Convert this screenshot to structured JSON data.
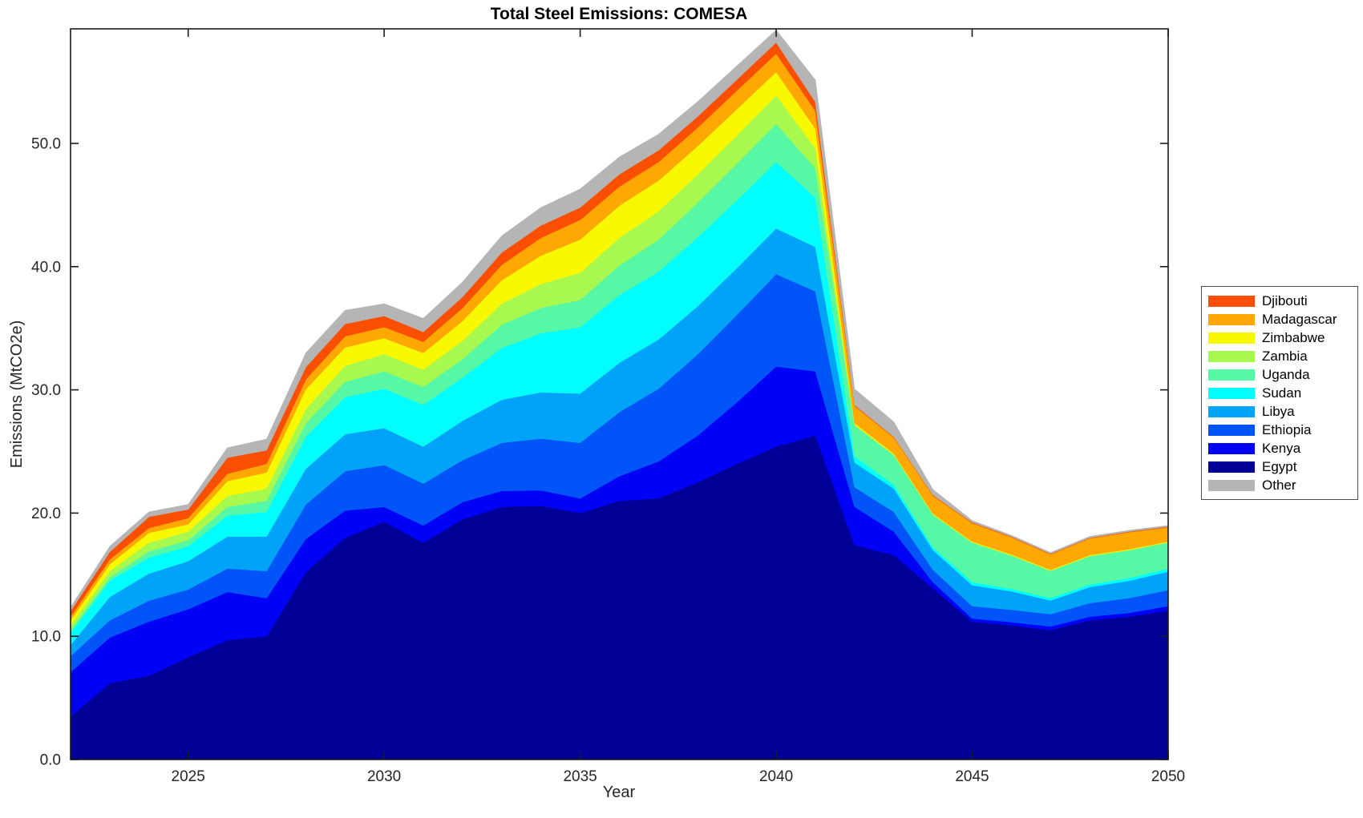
{
  "chart_data": {
    "type": "area",
    "stacked": true,
    "title": "Total Steel Emissions: COMESA",
    "xlabel": "Year",
    "ylabel": "Emissions (MtCO2e)",
    "x_range": [
      2022,
      2050
    ],
    "ylim": [
      0,
      59.3
    ],
    "x_ticks": [
      2025,
      2030,
      2035,
      2040,
      2045,
      2050
    ],
    "y_ticks": [
      0,
      10,
      20,
      30,
      40,
      50
    ],
    "y_tick_labels": [
      "0.0",
      "10.0",
      "20.0",
      "30.0",
      "40.0",
      "50.0"
    ],
    "grid": false,
    "legend_position": "right-outside",
    "axis_color": "#1a1a1a",
    "years": [
      2022,
      2023,
      2024,
      2025,
      2026,
      2027,
      2028,
      2029,
      2030,
      2031,
      2032,
      2033,
      2034,
      2035,
      2036,
      2037,
      2038,
      2039,
      2040,
      2041,
      2042,
      2043,
      2044,
      2045,
      2046,
      2047,
      2048,
      2049,
      2050
    ],
    "series": [
      {
        "name": "Egypt",
        "color": "#000096",
        "values": [
          3.5,
          6.2,
          6.8,
          8.3,
          9.7,
          10.0,
          15.2,
          18.0,
          19.3,
          17.6,
          19.5,
          20.5,
          20.6,
          20.0,
          21.0,
          21.2,
          22.5,
          24.0,
          25.4,
          26.3,
          17.4,
          16.6,
          13.9,
          11.2,
          10.9,
          10.5,
          11.3,
          11.6,
          12.1
        ]
      },
      {
        "name": "Kenya",
        "color": "#0002f5",
        "values": [
          3.6,
          3.7,
          4.4,
          3.9,
          3.9,
          3.1,
          2.7,
          2.2,
          1.2,
          1.4,
          1.4,
          1.3,
          1.25,
          1.2,
          2.0,
          3.0,
          3.8,
          5.0,
          6.5,
          5.2,
          3.1,
          1.9,
          0.5,
          0.25,
          0.25,
          0.3,
          0.3,
          0.3,
          0.35
        ]
      },
      {
        "name": "Ethiopia",
        "color": "#0054f8",
        "values": [
          1.3,
          1.4,
          1.7,
          1.6,
          1.9,
          2.2,
          2.8,
          3.2,
          3.4,
          3.4,
          3.4,
          3.9,
          4.2,
          4.5,
          5.2,
          5.9,
          6.6,
          7.1,
          7.5,
          6.5,
          1.6,
          1.6,
          1.0,
          1.0,
          1.0,
          1.0,
          1.1,
          1.2,
          1.3
        ]
      },
      {
        "name": "Libya",
        "color": "#00a3f8",
        "values": [
          0.9,
          1.9,
          2.2,
          2.3,
          2.6,
          2.8,
          2.9,
          3.0,
          3.0,
          3.0,
          3.2,
          3.5,
          3.75,
          4.0,
          4.0,
          4.0,
          3.9,
          3.8,
          3.7,
          3.6,
          2.0,
          1.9,
          1.6,
          1.7,
          1.5,
          1.1,
          1.3,
          1.4,
          1.5
        ]
      },
      {
        "name": "Sudan",
        "color": "#00fdff",
        "values": [
          1.0,
          1.3,
          1.3,
          1.2,
          1.7,
          2.0,
          2.6,
          3.0,
          3.2,
          3.4,
          3.5,
          4.2,
          4.8,
          5.4,
          5.5,
          5.5,
          5.6,
          5.5,
          5.4,
          4.0,
          0.5,
          0.3,
          0.25,
          0.25,
          0.2,
          0.2,
          0.2,
          0.22,
          0.25
        ]
      },
      {
        "name": "Uganda",
        "color": "#56f8a5",
        "values": [
          0.2,
          0.3,
          0.5,
          0.5,
          0.7,
          0.9,
          1.1,
          1.25,
          1.4,
          1.45,
          1.5,
          1.9,
          2.05,
          2.2,
          2.4,
          2.6,
          2.8,
          2.95,
          3.1,
          2.4,
          2.5,
          2.4,
          2.6,
          3.2,
          2.7,
          2.2,
          2.3,
          2.25,
          2.1
        ]
      },
      {
        "name": "Zambia",
        "color": "#a7f84f",
        "values": [
          0.4,
          0.5,
          0.7,
          0.7,
          0.9,
          1.0,
          1.15,
          1.3,
          1.4,
          1.4,
          1.5,
          1.7,
          1.95,
          2.2,
          2.25,
          2.3,
          2.3,
          2.3,
          2.3,
          1.6,
          0.1,
          0.07,
          0.06,
          0.05,
          0.05,
          0.05,
          0.05,
          0.05,
          0.05
        ]
      },
      {
        "name": "Zimbabwe",
        "color": "#f8f800",
        "values": [
          0.4,
          0.55,
          0.8,
          0.6,
          1.2,
          1.3,
          1.6,
          1.5,
          1.3,
          1.35,
          1.6,
          1.9,
          2.3,
          2.7,
          2.6,
          2.5,
          2.3,
          2.15,
          1.9,
          1.6,
          0.1,
          0.07,
          0.06,
          0.05,
          0.05,
          0.05,
          0.05,
          0.05,
          0.05
        ]
      },
      {
        "name": "Madagascar",
        "color": "#ffa702",
        "values": [
          0.3,
          0.4,
          0.4,
          0.5,
          0.6,
          0.7,
          0.8,
          0.9,
          0.9,
          0.9,
          1.05,
          1.25,
          1.45,
          1.6,
          1.55,
          1.5,
          1.5,
          1.5,
          1.5,
          1.45,
          1.4,
          1.3,
          1.45,
          1.5,
          1.4,
          1.25,
          1.35,
          1.38,
          1.15
        ]
      },
      {
        "name": "Djibouti",
        "color": "#fa4f00",
        "values": [
          0.45,
          0.6,
          0.9,
          0.7,
          1.3,
          1.1,
          1.0,
          1.0,
          0.9,
          0.8,
          0.9,
          1.0,
          1.0,
          1.0,
          1.0,
          0.95,
          0.9,
          0.9,
          0.9,
          0.7,
          0.07,
          0.06,
          0.05,
          0.05,
          0.05,
          0.05,
          0.05,
          0.05,
          0.05
        ]
      },
      {
        "name": "Other",
        "color": "#b5b5b5",
        "values": [
          0.3,
          0.45,
          0.4,
          0.4,
          0.8,
          0.9,
          1.15,
          1.1,
          1.0,
          1.1,
          1.2,
          1.35,
          1.45,
          1.5,
          1.4,
          1.3,
          1.2,
          1.1,
          1.0,
          1.8,
          1.3,
          1.2,
          0.45,
          0.15,
          0.1,
          0.1,
          0.1,
          0.1,
          0.1
        ]
      }
    ],
    "legend_order": [
      "Djibouti",
      "Madagascar",
      "Zimbabwe",
      "Zambia",
      "Uganda",
      "Sudan",
      "Libya",
      "Ethiopia",
      "Kenya",
      "Egypt",
      "Other"
    ]
  }
}
